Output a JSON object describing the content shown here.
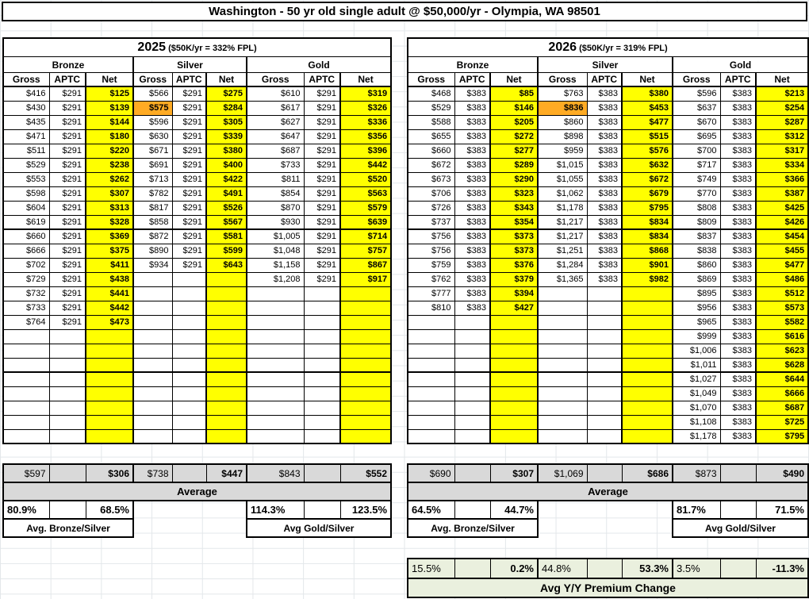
{
  "title": "Washington - 50 yr old single adult @ $50,000/yr - Olympia, WA 98501",
  "colors": {
    "net_highlight": "#FFFF00",
    "cell_highlight": "#FFAB24",
    "summary_bg": "#D9D9D9",
    "yoy_bg": "#EAF0DE"
  },
  "metals": [
    "Bronze",
    "Silver",
    "Gold"
  ],
  "col_headers": [
    "Gross",
    "APTC",
    "Net"
  ],
  "tables": [
    {
      "year": "2025",
      "fpl": "($50K/yr = 332% FPL)",
      "rows": 25,
      "bronze": {
        "aptc": "$291",
        "gross": [
          "$416",
          "$430",
          "$435",
          "$471",
          "$511",
          "$529",
          "$553",
          "$598",
          "$604",
          "$619",
          "$660",
          "$666",
          "$702",
          "$729",
          "$732",
          "$733",
          "$764"
        ],
        "net": [
          "$125",
          "$139",
          "$144",
          "$180",
          "$220",
          "$238",
          "$262",
          "$307",
          "$313",
          "$328",
          "$369",
          "$375",
          "$411",
          "$438",
          "$441",
          "$442",
          "$473"
        ]
      },
      "silver": {
        "aptc": "$291",
        "gross_highlight_row": 2,
        "gross": [
          "$566",
          "$575",
          "$596",
          "$630",
          "$671",
          "$691",
          "$713",
          "$782",
          "$817",
          "$858",
          "$872",
          "$890",
          "$934"
        ],
        "net": [
          "$275",
          "$284",
          "$305",
          "$339",
          "$380",
          "$400",
          "$422",
          "$491",
          "$526",
          "$567",
          "$581",
          "$599",
          "$643"
        ]
      },
      "gold": {
        "aptc": "$291",
        "gross": [
          "$610",
          "$617",
          "$627",
          "$647",
          "$687",
          "$733",
          "$811",
          "$854",
          "$870",
          "$930",
          "$1,005",
          "$1,048",
          "$1,158",
          "$1,208"
        ],
        "net": [
          "$319",
          "$326",
          "$336",
          "$356",
          "$396",
          "$442",
          "$520",
          "$563",
          "$579",
          "$639",
          "$714",
          "$757",
          "$867",
          "$917"
        ]
      },
      "summary": {
        "avg": [
          "$597",
          "",
          "$306",
          "$738",
          "",
          "$447",
          "$843",
          "",
          "$552"
        ],
        "avg_label": "Average",
        "pct": [
          "80.9%",
          "",
          "68.5%",
          "",
          "",
          "",
          "114.3%",
          "",
          "123.5%"
        ],
        "bronze_silver_label": "Avg. Bronze/Silver",
        "gold_silver_label": "Avg Gold/Silver"
      }
    },
    {
      "year": "2026",
      "fpl": "($50K/yr = 319% FPL)",
      "rows": 25,
      "bronze": {
        "aptc": "$383",
        "gross": [
          "$468",
          "$529",
          "$588",
          "$655",
          "$660",
          "$672",
          "$673",
          "$706",
          "$726",
          "$737",
          "$756",
          "$756",
          "$759",
          "$762",
          "$777",
          "$810"
        ],
        "net": [
          "$85",
          "$146",
          "$205",
          "$272",
          "$277",
          "$289",
          "$290",
          "$323",
          "$343",
          "$354",
          "$373",
          "$373",
          "$376",
          "$379",
          "$394",
          "$427"
        ]
      },
      "silver": {
        "aptc": "$383",
        "gross_highlight_row": 2,
        "gross": [
          "$763",
          "$836",
          "$860",
          "$898",
          "$959",
          "$1,015",
          "$1,055",
          "$1,062",
          "$1,178",
          "$1,217",
          "$1,217",
          "$1,251",
          "$1,284",
          "$1,365"
        ],
        "net": [
          "$380",
          "$453",
          "$477",
          "$515",
          "$576",
          "$632",
          "$672",
          "$679",
          "$795",
          "$834",
          "$834",
          "$868",
          "$901",
          "$982"
        ]
      },
      "gold": {
        "aptc": "$383",
        "gross": [
          "$596",
          "$637",
          "$670",
          "$695",
          "$700",
          "$717",
          "$749",
          "$770",
          "$808",
          "$809",
          "$837",
          "$838",
          "$860",
          "$869",
          "$895",
          "$956",
          "$965",
          "$999",
          "$1,006",
          "$1,011",
          "$1,027",
          "$1,049",
          "$1,070",
          "$1,108",
          "$1,178"
        ],
        "net": [
          "$213",
          "$254",
          "$287",
          "$312",
          "$317",
          "$334",
          "$366",
          "$387",
          "$425",
          "$426",
          "$454",
          "$455",
          "$477",
          "$486",
          "$512",
          "$573",
          "$582",
          "$616",
          "$623",
          "$628",
          "$644",
          "$666",
          "$687",
          "$725",
          "$795"
        ]
      },
      "summary": {
        "avg": [
          "$690",
          "",
          "$307",
          "$1,069",
          "",
          "$686",
          "$873",
          "",
          "$490"
        ],
        "avg_label": "Average",
        "pct": [
          "64.5%",
          "",
          "44.7%",
          "",
          "",
          "",
          "81.7%",
          "",
          "71.5%"
        ],
        "bronze_silver_label": "Avg. Bronze/Silver",
        "gold_silver_label": "Avg Gold/Silver"
      },
      "yoy": {
        "values": [
          "15.5%",
          "",
          "0.2%",
          "44.8%",
          "",
          "53.3%",
          "3.5%",
          "",
          "-11.3%"
        ],
        "label": "Avg Y/Y Premium Change"
      }
    }
  ]
}
